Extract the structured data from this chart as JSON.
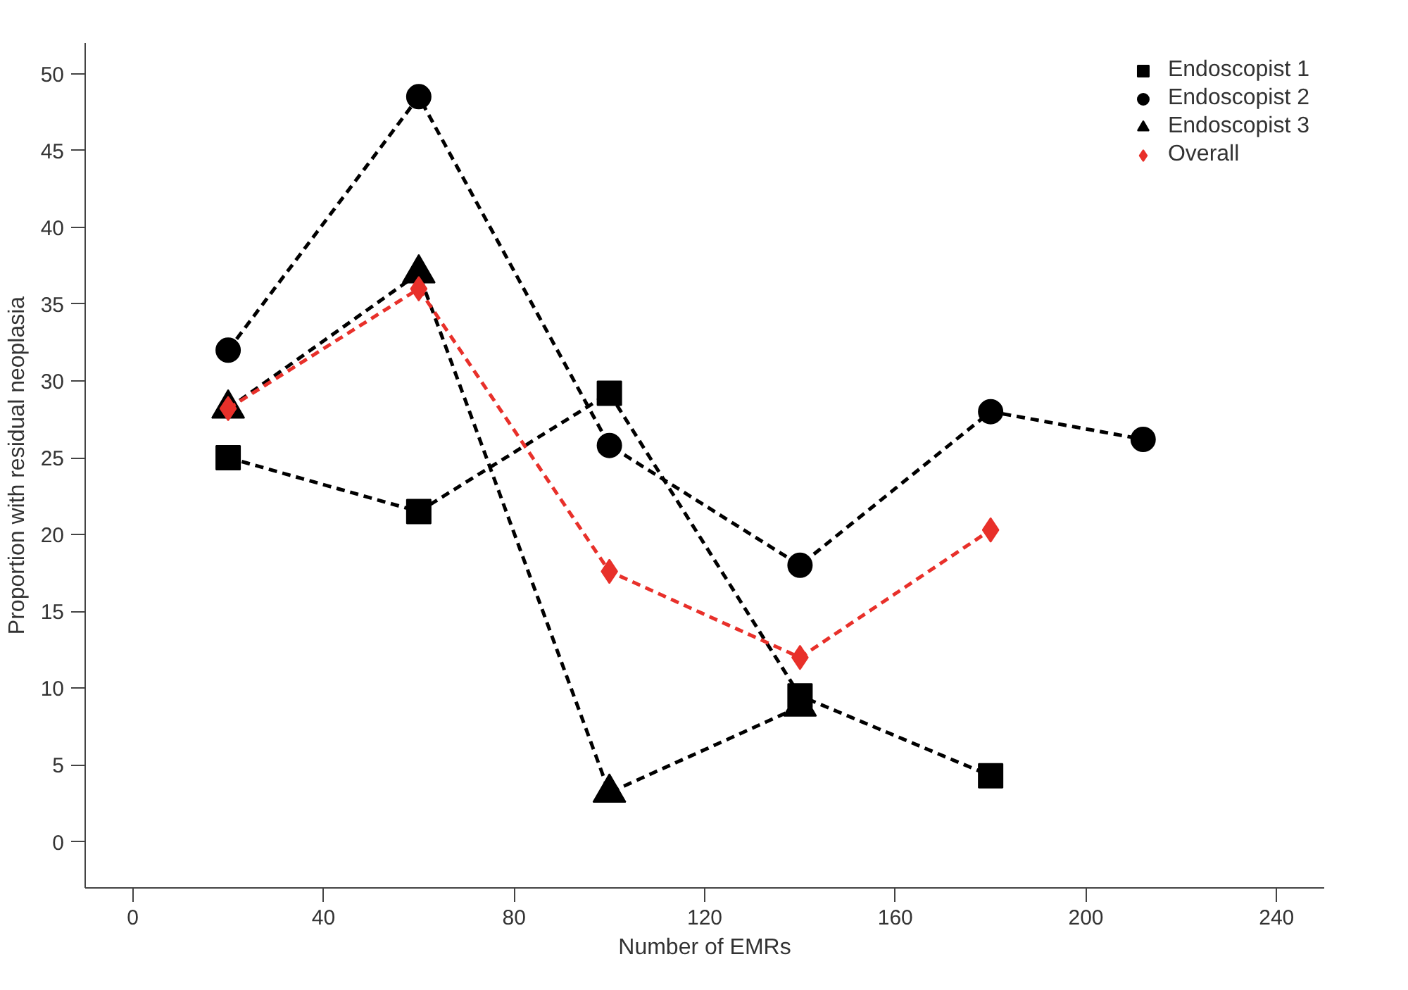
{
  "chart_data": {
    "type": "line",
    "xlabel": "Number of EMRs",
    "ylabel": "Proportion with residual neoplasia",
    "xlim": [
      -10,
      250
    ],
    "ylim": [
      -3,
      52
    ],
    "xticks": [
      0,
      40,
      80,
      120,
      160,
      200,
      240
    ],
    "yticks": [
      0,
      5,
      10,
      15,
      20,
      25,
      30,
      35,
      40,
      45,
      50
    ],
    "grid": false,
    "legend": "top right",
    "line_style": "dashed",
    "series": [
      {
        "name": "Endoscopist 1",
        "color": "#000000",
        "marker": "square",
        "x": [
          20,
          60,
          100,
          140,
          180
        ],
        "values": [
          25,
          21.5,
          29.2,
          9.5,
          4.3
        ]
      },
      {
        "name": "Endoscopist 2",
        "color": "#000000",
        "marker": "circle",
        "x": [
          20,
          60,
          100,
          140,
          180,
          212
        ],
        "values": [
          32,
          48.5,
          25.8,
          18,
          28,
          26.2
        ]
      },
      {
        "name": "Endoscopist 3",
        "color": "#000000",
        "marker": "triangle",
        "x": [
          20,
          60,
          100,
          140
        ],
        "values": [
          28.2,
          37,
          3.2,
          8.8
        ]
      },
      {
        "name": "Overall",
        "color": "#e8302a",
        "marker": "diamond",
        "x": [
          20,
          60,
          100,
          140,
          180
        ],
        "values": [
          28.2,
          36,
          17.6,
          12,
          20.3
        ]
      }
    ]
  }
}
